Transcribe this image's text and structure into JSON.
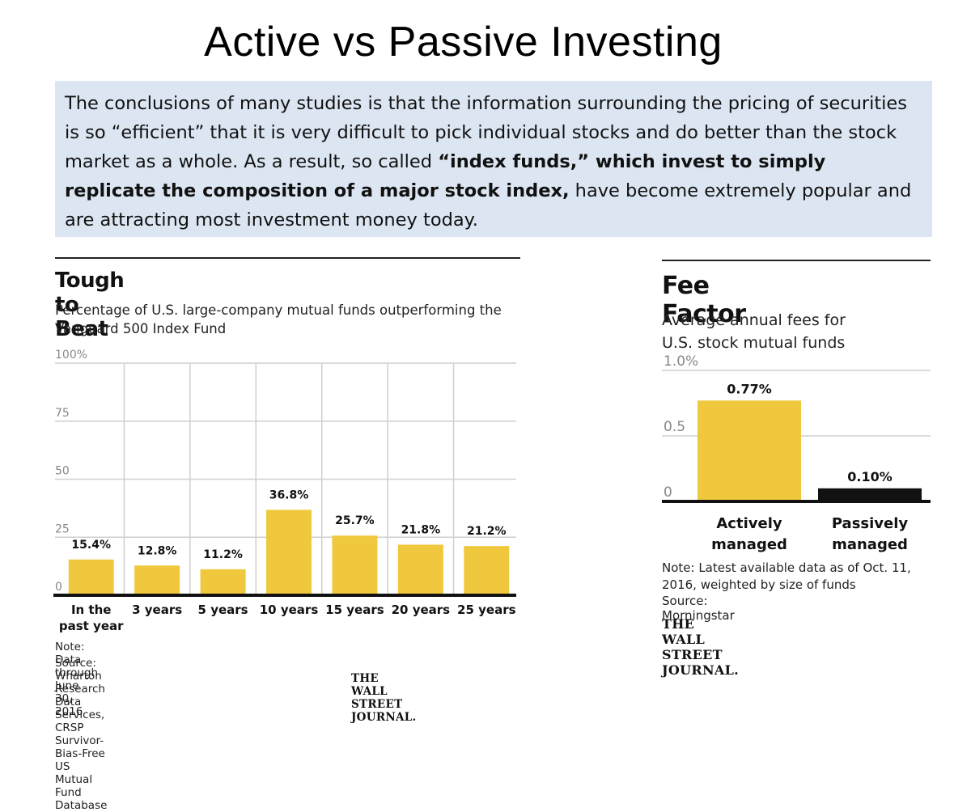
{
  "slide": {
    "title": "Active vs Passive Investing",
    "intro_part1": "The conclusions of many studies is that the information surrounding the pricing of securities is so “efficient” that it is very difficult to pick individual stocks and do better than the stock market as a whole. As a result, so called ",
    "intro_bold": "“index funds,” which invest to simply replicate the composition of a major stock index,",
    "intro_part2": " have become extremely popular and are attracting most investment money today."
  },
  "chart_data": [
    {
      "type": "bar",
      "title": "Tough to Beat",
      "subtitle": "Percentage of U.S. large-company mutual funds outperforming the Vanguard  500 Index Fund",
      "categories": [
        "In the past year",
        "3 years",
        "5 years",
        "10 years",
        "15 years",
        "20 years",
        "25 years"
      ],
      "category_lines": [
        [
          "In the",
          "past year"
        ],
        [
          "3 years"
        ],
        [
          "5 years"
        ],
        [
          "10 years"
        ],
        [
          "15 years"
        ],
        [
          "20 years"
        ],
        [
          "25 years"
        ]
      ],
      "values": [
        15.4,
        12.8,
        11.2,
        36.8,
        25.7,
        21.8,
        21.2
      ],
      "value_labels": [
        "15.4%",
        "12.8%",
        "11.2%",
        "36.8%",
        "25.7%",
        "21.8%",
        "21.2%"
      ],
      "ylim": [
        0,
        100
      ],
      "yticks": [
        0,
        25,
        50,
        75,
        100
      ],
      "ytick_labels": [
        "0",
        "25",
        "50",
        "75",
        "100%"
      ],
      "grid": true,
      "bar_color": "#f0c83e",
      "note": "Note: Data through June 30, 2016",
      "source": "Source: Wharton Research Data Services, CRSP Survivor-Bias-Free US Mutual Fund Database",
      "credit": "THE WALL STREET JOURNAL."
    },
    {
      "type": "bar",
      "title": "Fee Factor",
      "subtitle": "Average annual fees for U.S. stock mutual funds",
      "categories": [
        "Actively managed",
        "Passively managed"
      ],
      "category_lines": [
        [
          "Actively",
          "managed"
        ],
        [
          "Passively",
          "managed"
        ]
      ],
      "values": [
        0.77,
        0.1
      ],
      "value_labels": [
        "0.77%",
        "0.10%"
      ],
      "ylim": [
        0,
        1.0
      ],
      "yticks": [
        0,
        0.5,
        1.0
      ],
      "ytick_labels": [
        "0",
        "0.5",
        "1.0%"
      ],
      "grid": true,
      "bar_colors": [
        "#f0c83e",
        "#111111"
      ],
      "note": "Note: Latest available data as of Oct. 11, 2016, weighted by size of funds",
      "source": "Source: Morningstar",
      "credit": "THE WALL STREET JOURNAL."
    }
  ]
}
